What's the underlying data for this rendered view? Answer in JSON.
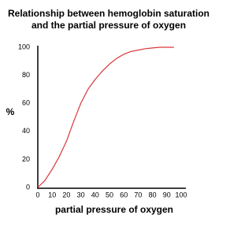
{
  "chart_data": {
    "type": "line",
    "title": [
      "Relationship between hemoglobin saturation",
      "and the partial pressure of oxygen"
    ],
    "x_label": "partial pressure of oxygen",
    "y_label": "%",
    "series": [
      {
        "color": "#d9363a",
        "x": [
          0,
          5,
          10,
          15,
          20,
          25,
          30,
          35,
          40,
          45,
          50,
          55,
          60,
          65,
          70,
          75,
          80,
          85,
          90,
          95
        ],
        "values": [
          0,
          5,
          13,
          22,
          33,
          47,
          60,
          70,
          77,
          83,
          88,
          92,
          95,
          97,
          98,
          99,
          99.5,
          100,
          100,
          100
        ]
      }
    ],
    "xlim": [
      0,
      100
    ],
    "xticks": [
      0,
      10,
      20,
      30,
      40,
      50,
      60,
      70,
      80,
      90,
      100
    ],
    "ylim": [
      0,
      100
    ],
    "yticks": [
      0,
      20,
      40,
      60,
      80,
      100
    ],
    "grid": false
  }
}
